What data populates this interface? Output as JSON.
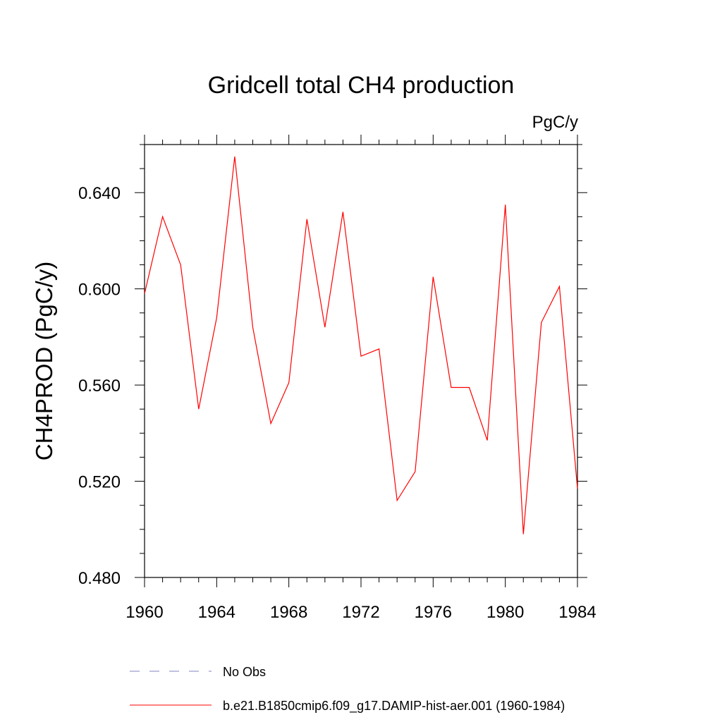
{
  "chart_data": {
    "type": "line",
    "title": "Gridcell total CH4 production",
    "units_label": "PgC/y",
    "ylabel": "CH4PROD  (PgC/y)",
    "xlabel": "",
    "xlim": [
      1960,
      1984
    ],
    "ylim": [
      0.48,
      0.66
    ],
    "x_ticks": [
      1960,
      1964,
      1968,
      1972,
      1976,
      1980,
      1984
    ],
    "y_ticks": [
      0.48,
      0.52,
      0.56,
      0.6,
      0.64
    ],
    "y_tick_labels": [
      "0.480",
      "0.520",
      "0.560",
      "0.600",
      "0.640"
    ],
    "x_tick_labels": [
      "1960",
      "1964",
      "1968",
      "1972",
      "1976",
      "1980",
      "1984"
    ],
    "grid": false,
    "legend_placement": "bottom",
    "series": [
      {
        "name": "b.e21.B1850cmip6.f09_g17.DAMIP-hist-aer.001 (1960-1984)",
        "color": "#ff0000",
        "style": "solid",
        "x": [
          1960,
          1961,
          1962,
          1963,
          1964,
          1965,
          1966,
          1967,
          1968,
          1969,
          1970,
          1971,
          1972,
          1973,
          1974,
          1975,
          1976,
          1977,
          1978,
          1979,
          1980,
          1981,
          1982,
          1983,
          1984
        ],
        "y": [
          0.598,
          0.63,
          0.61,
          0.55,
          0.588,
          0.655,
          0.584,
          0.544,
          0.561,
          0.629,
          0.584,
          0.632,
          0.572,
          0.575,
          0.512,
          0.524,
          0.605,
          0.559,
          0.559,
          0.537,
          0.635,
          0.498,
          0.586,
          0.601,
          0.517
        ]
      }
    ],
    "legend": [
      {
        "label": "No Obs",
        "color": "#8080c0",
        "style": "dashed"
      },
      {
        "label": "b.e21.B1850cmip6.f09_g17.DAMIP-hist-aer.001 (1960-1984)",
        "color": "#ff0000",
        "style": "solid"
      }
    ]
  }
}
